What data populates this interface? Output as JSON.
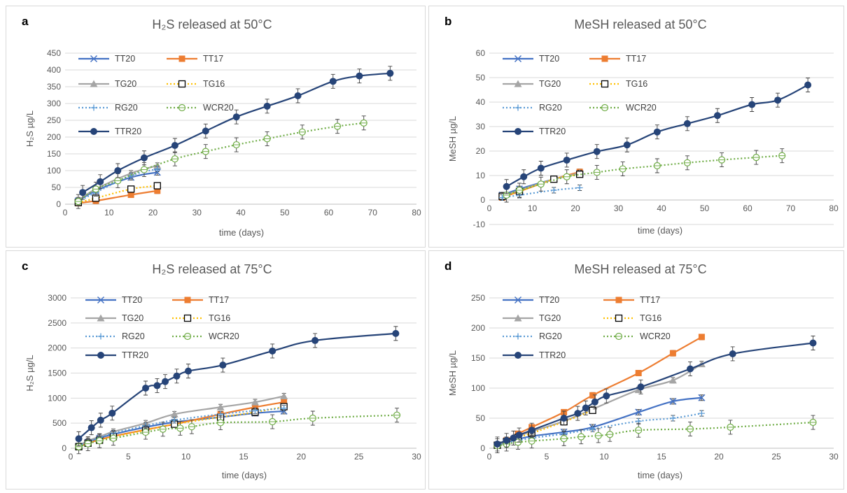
{
  "panels": [
    {
      "letter": "a"
    },
    {
      "letter": "b"
    },
    {
      "letter": "c"
    },
    {
      "letter": "d"
    }
  ],
  "legend_labels": [
    "TT20",
    "TT17",
    "TG20",
    "TG16",
    "RG20",
    "WCR20",
    "TTR20"
  ],
  "colors": {
    "TT20": "#4472C4",
    "TT17": "#ED7D31",
    "TG20": "#A5A5A5",
    "TG16": "#FFC000",
    "RG20": "#5B9BD5",
    "WCR20": "#70AD47",
    "TTR20": "#264478"
  },
  "chart_data": [
    {
      "type": "line",
      "title": "H₂S released at 50°C",
      "xlabel": "time (days)",
      "ylabel": "H₂S µg/L",
      "xlim": [
        0,
        80
      ],
      "xticks": [
        0,
        10,
        20,
        30,
        40,
        50,
        60,
        70,
        80
      ],
      "ylim": [
        0,
        450
      ],
      "yticks": [
        0,
        50,
        100,
        150,
        200,
        250,
        300,
        350,
        400,
        450
      ],
      "grid": true,
      "series": [
        {
          "name": "TT20",
          "x": [
            3,
            7,
            15,
            21
          ],
          "y": [
            10,
            40,
            80,
            95
          ]
        },
        {
          "name": "TT17",
          "x": [
            3,
            7,
            15,
            21
          ],
          "y": [
            3,
            10,
            28,
            40
          ]
        },
        {
          "name": "TG20",
          "x": [
            3,
            7,
            15,
            21
          ],
          "y": [
            12,
            45,
            92,
            115
          ]
        },
        {
          "name": "TG16",
          "x": [
            3,
            7,
            15,
            21
          ],
          "y": [
            5,
            18,
            45,
            55
          ]
        },
        {
          "name": "RG20",
          "x": [
            3,
            7,
            15,
            21
          ],
          "y": [
            8,
            35,
            85,
            105
          ]
        },
        {
          "name": "WCR20",
          "x": [
            3,
            7,
            12,
            18,
            25,
            32,
            39,
            46,
            54,
            62,
            68
          ],
          "y": [
            8,
            45,
            70,
            103,
            135,
            157,
            177,
            195,
            215,
            232,
            242
          ]
        },
        {
          "name": "TTR20",
          "x": [
            4,
            8,
            12,
            18,
            25,
            32,
            39,
            46,
            53,
            61,
            67,
            74
          ],
          "y": [
            35,
            67,
            100,
            138,
            175,
            218,
            260,
            292,
            323,
            366,
            382,
            390
          ]
        }
      ]
    },
    {
      "type": "line",
      "title": "MeSH released at 50°C",
      "xlabel": "time (days)",
      "ylabel": "MeSH µg/L",
      "xlim": [
        0,
        80
      ],
      "xticks": [
        0,
        10,
        20,
        30,
        40,
        50,
        60,
        70,
        80
      ],
      "ylim": [
        -10,
        60
      ],
      "yticks": [
        -10,
        0,
        10,
        20,
        30,
        40,
        50,
        60
      ],
      "grid": true,
      "series": [
        {
          "name": "TT20",
          "x": [
            3,
            7,
            15,
            21
          ],
          "y": [
            2,
            4.5,
            8.5,
            11
          ]
        },
        {
          "name": "TT17",
          "x": [
            3,
            7,
            15,
            21
          ],
          "y": [
            1,
            3.5,
            8.5,
            11.5
          ]
        },
        {
          "name": "TG20",
          "x": [
            3,
            7,
            15,
            21
          ],
          "y": [
            1.5,
            4,
            8.5,
            11
          ]
        },
        {
          "name": "TG16",
          "x": [
            3,
            7,
            15,
            21
          ],
          "y": [
            1.5,
            3.5,
            8.5,
            10.5
          ]
        },
        {
          "name": "RG20",
          "x": [
            3,
            7,
            15,
            21
          ],
          "y": [
            1,
            2,
            4,
            5
          ]
        },
        {
          "name": "WCR20",
          "x": [
            4,
            7,
            12,
            18,
            25,
            31,
            39,
            46,
            54,
            62,
            68
          ],
          "y": [
            2,
            4,
            6.5,
            9.5,
            11.3,
            12.7,
            14,
            15.2,
            16.4,
            17.4,
            18.1
          ]
        },
        {
          "name": "TTR20",
          "x": [
            4,
            8,
            12,
            18,
            25,
            32,
            39,
            46,
            53,
            61,
            67,
            74
          ],
          "y": [
            5.5,
            9.5,
            13,
            16.3,
            19.8,
            22.5,
            27.8,
            31.2,
            34.5,
            39,
            40.8,
            47
          ]
        }
      ]
    },
    {
      "type": "line",
      "title": "H₂S released at 75°C",
      "xlabel": "time (days)",
      "ylabel": "H₂S µg/L",
      "xlim": [
        0,
        30
      ],
      "xticks": [
        0,
        5,
        10,
        15,
        20,
        25,
        30
      ],
      "ylim": [
        0,
        3000
      ],
      "yticks": [
        0,
        500,
        1000,
        1500,
        2000,
        2500,
        3000
      ],
      "grid": true,
      "series": [
        {
          "name": "TT20",
          "x": [
            0.7,
            1.5,
            2.5,
            3.7,
            6.5,
            9,
            13,
            16,
            18.5
          ],
          "y": [
            40,
            120,
            200,
            280,
            420,
            520,
            620,
            700,
            740
          ]
        },
        {
          "name": "TT17",
          "x": [
            0.7,
            1.5,
            2.5,
            3.7,
            6.5,
            9,
            13,
            16,
            18.5
          ],
          "y": [
            30,
            100,
            170,
            240,
            370,
            480,
            680,
            820,
            920
          ]
        },
        {
          "name": "TG20",
          "x": [
            0.7,
            1.5,
            2.5,
            3.7,
            6.5,
            9,
            13,
            16,
            18.5
          ],
          "y": [
            50,
            150,
            230,
            330,
            500,
            680,
            820,
            920,
            1040
          ]
        },
        {
          "name": "TG16",
          "x": [
            0.7,
            1.5,
            2.5,
            3.7,
            6.5,
            9,
            13,
            16,
            18.5
          ],
          "y": [
            30,
            100,
            160,
            230,
            360,
            480,
            620,
            720,
            830
          ]
        },
        {
          "name": "RG20",
          "x": [
            0.7,
            1.5,
            2.5,
            3.7,
            6.5,
            9,
            13,
            16,
            18.5
          ],
          "y": [
            40,
            130,
            210,
            300,
            450,
            560,
            680,
            750,
            800
          ]
        },
        {
          "name": "WCR20",
          "x": [
            0.7,
            1.5,
            2.5,
            3.7,
            6.5,
            8,
            9.5,
            10.5,
            13,
            17.5,
            21,
            28.3
          ],
          "y": [
            30,
            90,
            150,
            200,
            320,
            380,
            400,
            430,
            510,
            530,
            600,
            660
          ]
        },
        {
          "name": "TTR20",
          "x": [
            0.7,
            1.8,
            2.6,
            3.6,
            6.5,
            7.5,
            8.2,
            9.2,
            10.2,
            13.2,
            17.5,
            21.2,
            28.2
          ],
          "y": [
            190,
            410,
            560,
            700,
            1200,
            1250,
            1330,
            1440,
            1540,
            1660,
            1940,
            2150,
            2290
          ]
        }
      ]
    },
    {
      "type": "line",
      "title": "MeSH released at 75°C",
      "xlabel": "time (days)",
      "ylabel": "MeSH µg/L",
      "xlim": [
        0,
        30
      ],
      "xticks": [
        0,
        5,
        10,
        15,
        20,
        25,
        30
      ],
      "ylim": [
        0,
        250
      ],
      "yticks": [
        0,
        50,
        100,
        150,
        200,
        250
      ],
      "grid": true,
      "series": [
        {
          "name": "TT20",
          "x": [
            0.7,
            1.5,
            2.5,
            3.7,
            6.5,
            9,
            13,
            16,
            18.5
          ],
          "y": [
            5,
            10,
            15,
            20,
            27,
            35,
            60,
            78,
            84
          ]
        },
        {
          "name": "TT17",
          "x": [
            0.7,
            1.5,
            2.5,
            3.7,
            6.5,
            9,
            13,
            16,
            18.5
          ],
          "y": [
            5,
            13,
            24,
            35,
            60,
            88,
            125,
            158,
            185
          ]
        },
        {
          "name": "TG20",
          "x": [
            0.7,
            1.5,
            2.5,
            3.7,
            6.5,
            9,
            13,
            16,
            18.5
          ],
          "y": [
            5,
            12,
            20,
            28,
            45,
            65,
            97,
            113,
            140
          ]
        },
        {
          "name": "TG16",
          "x": [
            0.7,
            1.5,
            2.5,
            3.7,
            6.5,
            9
          ],
          "y": [
            5,
            11,
            18,
            25,
            44,
            63
          ]
        },
        {
          "name": "RG20",
          "x": [
            0.7,
            1.5,
            2.5,
            3.7,
            6.5,
            9,
            13,
            16,
            18.5
          ],
          "y": [
            5,
            9,
            13,
            17,
            24,
            32,
            45,
            50,
            58
          ]
        },
        {
          "name": "WCR20",
          "x": [
            0.7,
            1.5,
            2.5,
            3.7,
            6.5,
            8,
            9.5,
            10.5,
            13,
            17.5,
            21,
            28.2
          ],
          "y": [
            4,
            7,
            10,
            12,
            16,
            19,
            21,
            23,
            30,
            32,
            35,
            43
          ]
        },
        {
          "name": "TTR20",
          "x": [
            0.7,
            1.5,
            2.1,
            2.6,
            3.7,
            6.5,
            7.7,
            8.4,
            9.2,
            10.2,
            13.2,
            17.5,
            21.2,
            28.2
          ],
          "y": [
            7,
            13,
            17,
            22,
            30,
            50,
            58,
            67,
            77,
            87,
            102,
            132,
            157,
            175
          ]
        }
      ]
    }
  ]
}
